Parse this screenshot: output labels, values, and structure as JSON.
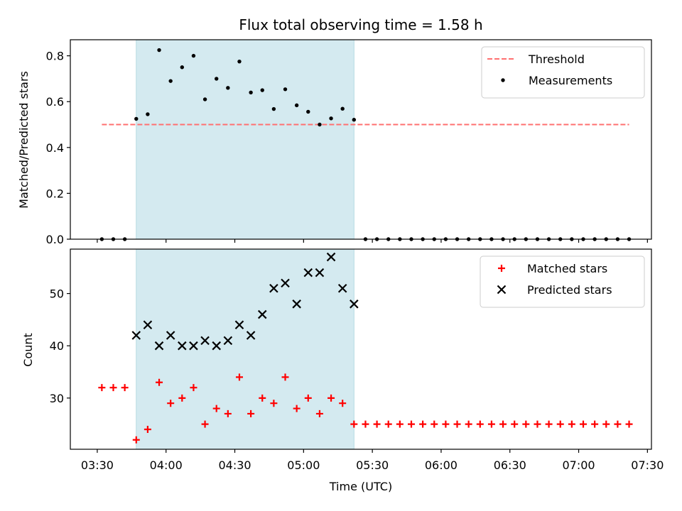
{
  "chart_data": {
    "title": "Flux total observing time = 1.58 h",
    "xlabel": "Time (UTC)",
    "x_ticks": [
      "03:30",
      "04:00",
      "04:30",
      "05:00",
      "05:30",
      "06:00",
      "06:30",
      "07:00",
      "07:30"
    ],
    "highlight_span": {
      "start": "03:47",
      "end": "05:22",
      "color": "#d4eaf0"
    },
    "panels": [
      {
        "type": "scatter",
        "ylabel": "Matched/Predicted stars",
        "ylim": [
          0,
          0.87
        ],
        "y_ticks": [
          "0.0",
          "0.2",
          "0.4",
          "0.6",
          "0.8"
        ],
        "legend_position": "upper right",
        "threshold": {
          "name": "Threshold",
          "value": 0.5,
          "x_range": [
            "03:32",
            "07:22"
          ],
          "color": "#ff7070"
        },
        "series": [
          {
            "name": "Measurements",
            "color": "#000000",
            "points": [
              [
                "03:32",
                0
              ],
              [
                "03:37",
                0
              ],
              [
                "03:42",
                0
              ],
              [
                "03:47",
                0.525
              ],
              [
                "03:52",
                0.545
              ],
              [
                "03:57",
                0.825
              ],
              [
                "04:02",
                0.69
              ],
              [
                "04:07",
                0.75
              ],
              [
                "04:12",
                0.8
              ],
              [
                "04:17",
                0.61
              ],
              [
                "04:22",
                0.7
              ],
              [
                "04:27",
                0.66
              ],
              [
                "04:32",
                0.775
              ],
              [
                "04:37",
                0.64
              ],
              [
                "04:42",
                0.65
              ],
              [
                "04:47",
                0.568
              ],
              [
                "04:52",
                0.654
              ],
              [
                "04:57",
                0.584
              ],
              [
                "05:02",
                0.556
              ],
              [
                "05:07",
                0.5
              ],
              [
                "05:12",
                0.527
              ],
              [
                "05:17",
                0.569
              ],
              [
                "05:22",
                0.521
              ],
              [
                "05:27",
                0
              ],
              [
                "05:32",
                0
              ],
              [
                "05:37",
                0
              ],
              [
                "05:42",
                0
              ],
              [
                "05:47",
                0
              ],
              [
                "05:52",
                0
              ],
              [
                "05:57",
                0
              ],
              [
                "06:02",
                0
              ],
              [
                "06:07",
                0
              ],
              [
                "06:12",
                0
              ],
              [
                "06:17",
                0
              ],
              [
                "06:22",
                0
              ],
              [
                "06:27",
                0
              ],
              [
                "06:32",
                0
              ],
              [
                "06:37",
                0
              ],
              [
                "06:42",
                0
              ],
              [
                "06:47",
                0
              ],
              [
                "06:52",
                0
              ],
              [
                "06:57",
                0
              ],
              [
                "07:02",
                0
              ],
              [
                "07:07",
                0
              ],
              [
                "07:12",
                0
              ],
              [
                "07:17",
                0
              ],
              [
                "07:22",
                0
              ]
            ]
          }
        ]
      },
      {
        "type": "scatter",
        "ylabel": "Count",
        "ylim": [
          20.2,
          58.5
        ],
        "y_ticks": [
          "30",
          "40",
          "50"
        ],
        "legend_position": "upper right",
        "series": [
          {
            "name": "Matched stars",
            "marker": "+",
            "color": "#ff0000",
            "points": [
              [
                "03:32",
                32
              ],
              [
                "03:37",
                32
              ],
              [
                "03:42",
                32
              ],
              [
                "03:47",
                22
              ],
              [
                "03:52",
                24
              ],
              [
                "03:57",
                33
              ],
              [
                "04:02",
                29
              ],
              [
                "04:07",
                30
              ],
              [
                "04:12",
                32
              ],
              [
                "04:17",
                25
              ],
              [
                "04:22",
                28
              ],
              [
                "04:27",
                27
              ],
              [
                "04:32",
                34
              ],
              [
                "04:37",
                27
              ],
              [
                "04:42",
                30
              ],
              [
                "04:47",
                29
              ],
              [
                "04:52",
                34
              ],
              [
                "04:57",
                28
              ],
              [
                "05:02",
                30
              ],
              [
                "05:07",
                27
              ],
              [
                "05:12",
                30
              ],
              [
                "05:17",
                29
              ],
              [
                "05:22",
                25
              ],
              [
                "05:27",
                25
              ],
              [
                "05:32",
                25
              ],
              [
                "05:37",
                25
              ],
              [
                "05:42",
                25
              ],
              [
                "05:47",
                25
              ],
              [
                "05:52",
                25
              ],
              [
                "05:57",
                25
              ],
              [
                "06:02",
                25
              ],
              [
                "06:07",
                25
              ],
              [
                "06:12",
                25
              ],
              [
                "06:17",
                25
              ],
              [
                "06:22",
                25
              ],
              [
                "06:27",
                25
              ],
              [
                "06:32",
                25
              ],
              [
                "06:37",
                25
              ],
              [
                "06:42",
                25
              ],
              [
                "06:47",
                25
              ],
              [
                "06:52",
                25
              ],
              [
                "06:57",
                25
              ],
              [
                "07:02",
                25
              ],
              [
                "07:07",
                25
              ],
              [
                "07:12",
                25
              ],
              [
                "07:17",
                25
              ],
              [
                "07:22",
                25
              ]
            ]
          },
          {
            "name": "Predicted stars",
            "marker": "x",
            "color": "#000000",
            "points": [
              [
                "03:47",
                42
              ],
              [
                "03:52",
                44
              ],
              [
                "03:57",
                40
              ],
              [
                "04:02",
                42
              ],
              [
                "04:07",
                40
              ],
              [
                "04:12",
                40
              ],
              [
                "04:17",
                41
              ],
              [
                "04:22",
                40
              ],
              [
                "04:27",
                41
              ],
              [
                "04:32",
                44
              ],
              [
                "04:37",
                42
              ],
              [
                "04:42",
                46
              ],
              [
                "04:47",
                51
              ],
              [
                "04:52",
                52
              ],
              [
                "04:57",
                48
              ],
              [
                "05:02",
                54
              ],
              [
                "05:07",
                54
              ],
              [
                "05:12",
                57
              ],
              [
                "05:17",
                51
              ],
              [
                "05:22",
                48
              ]
            ]
          }
        ]
      }
    ]
  }
}
